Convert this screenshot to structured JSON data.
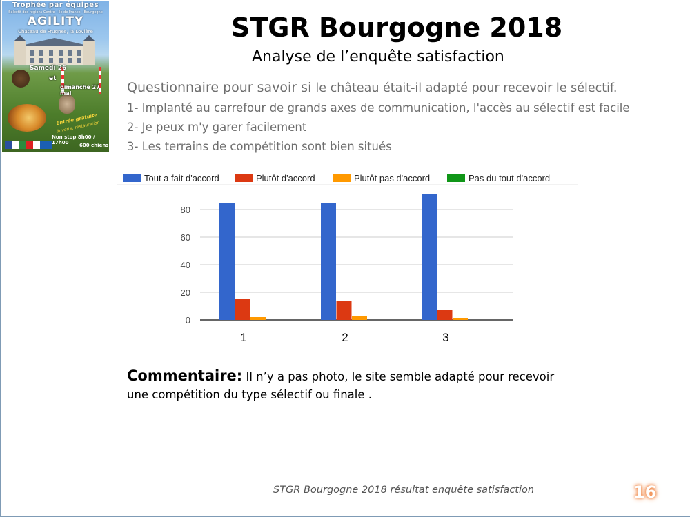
{
  "poster": {
    "line1": "Trophée par équipes",
    "line2": "Sélectif des régions Centre - Ile de France - Bourgogne",
    "line3": "AGILITY",
    "line4": "Château de Frugnes, la Lovière",
    "line5": "Samedi 26",
    "line6": "et",
    "line7": "dimanche 27 mai",
    "line8": "Entrée gratuite",
    "line9": "Buvette, restauration",
    "line10": "Non stop 8h00 / 17h00",
    "line11": "600 chiens"
  },
  "title": "STGR Bourgogne 2018",
  "subtitle": "Analyse de l’enquête satisfaction",
  "questions": {
    "intro_a": "Questionnaire pour savoir si ",
    "intro_b": "le château était-il adapté pour recevoir le sélectif.",
    "q1": "1-  Implanté au carrefour de grands axes de communication, l'accès au sélectif est facile",
    "q2": "2- Je peux m'y garer facilement",
    "q3": "3-  Les terrains de compétition sont bien situés"
  },
  "chart_data": {
    "type": "bar",
    "categories": [
      "1",
      "2",
      "3"
    ],
    "series": [
      {
        "name": "Tout a fait d'accord",
        "color": "#3366cc",
        "values": [
          85,
          85,
          91
        ]
      },
      {
        "name": "Plutôt d'accord",
        "color": "#dc3912",
        "values": [
          15,
          14,
          7
        ]
      },
      {
        "name": "Plutôt pas d'accord",
        "color": "#ff9900",
        "values": [
          2,
          2.5,
          1
        ]
      },
      {
        "name": "Pas du tout d'accord",
        "color": "#109618",
        "values": [
          0,
          0,
          0
        ]
      }
    ],
    "y_ticks": [
      "0",
      "20",
      "40",
      "60",
      "80"
    ],
    "ylim": [
      0,
      90
    ],
    "legend_position": "top",
    "grid": true
  },
  "comment": {
    "label": "Commentaire:",
    "text": " Il n’y a pas photo, le site semble adapté pour recevoir une compétition du type sélectif ou finale ."
  },
  "footer": "STGR Bourgogne 2018 résultat enquête satisfaction",
  "page_number": "16"
}
